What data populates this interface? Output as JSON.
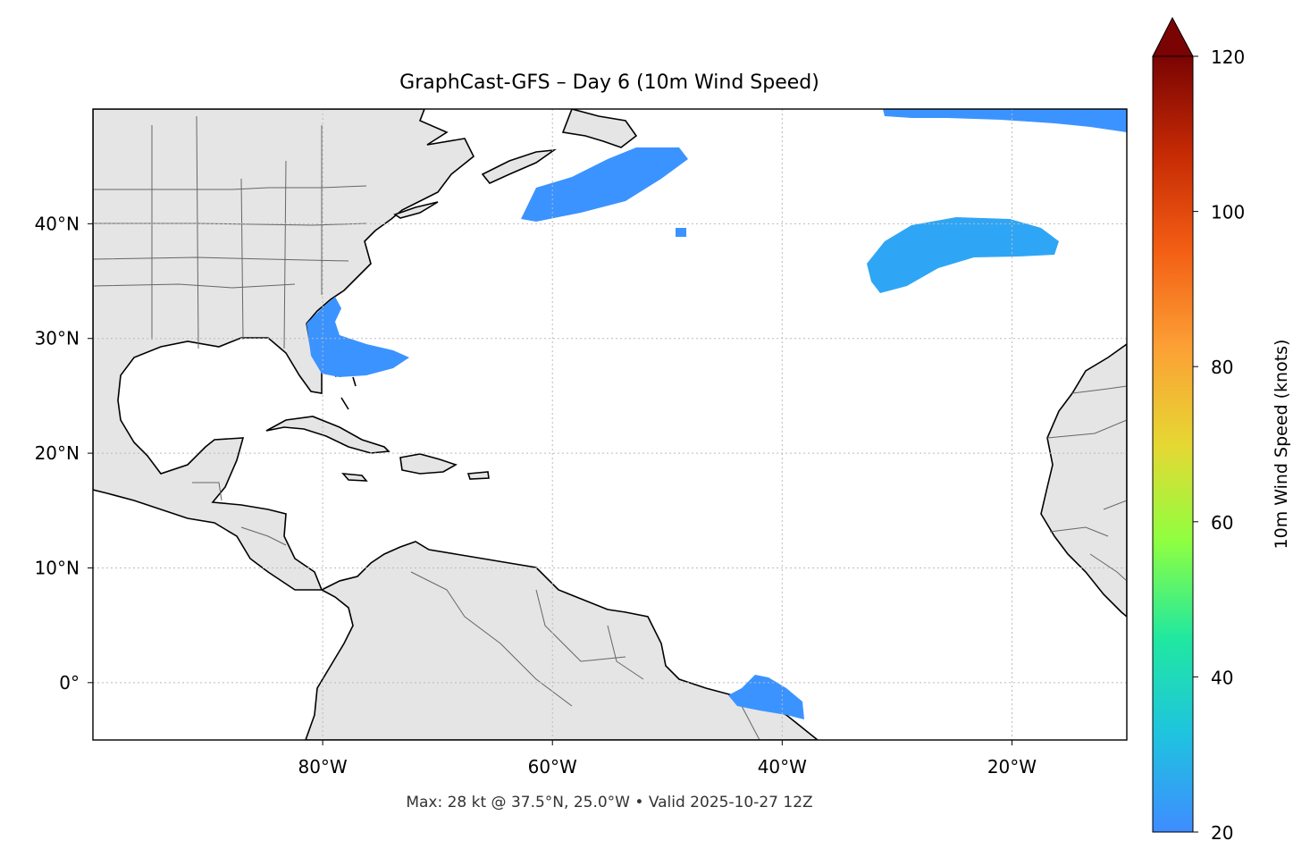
{
  "title": "GraphCast-GFS – Day 6 (10m Wind Speed)",
  "footer": "Max: 28 kt @ 37.5°N, 25.0°W • Valid 2025-10-27 12Z",
  "map": {
    "lon_range": [
      -100,
      -10
    ],
    "lat_range": [
      -5,
      50
    ],
    "xticks": [
      {
        "value": -80,
        "label": "80°W"
      },
      {
        "value": -60,
        "label": "60°W"
      },
      {
        "value": -40,
        "label": "40°W"
      },
      {
        "value": -20,
        "label": "20°W"
      }
    ],
    "yticks": [
      {
        "value": 40,
        "label": "40°N"
      },
      {
        "value": 30,
        "label": "30°N"
      },
      {
        "value": 20,
        "label": "20°N"
      },
      {
        "value": 10,
        "label": "10°N"
      },
      {
        "value": 0,
        "label": "0°"
      }
    ],
    "gridlines": true,
    "land_color": "#e5e5e5",
    "coast_color": "#000000",
    "border_color": "#666666"
  },
  "colorbar": {
    "label": "10m Wind Speed (knots)",
    "range": [
      20,
      120
    ],
    "extend": "max",
    "ticks": [
      {
        "value": 20,
        "label": "20"
      },
      {
        "value": 40,
        "label": "40"
      },
      {
        "value": 60,
        "label": "60"
      },
      {
        "value": 80,
        "label": "80"
      },
      {
        "value": 100,
        "label": "100"
      },
      {
        "value": 120,
        "label": "120"
      }
    ],
    "colors": [
      "#3f8cff",
      "#1fc3e0",
      "#20e8a0",
      "#8fff40",
      "#e6d733",
      "#fca035",
      "#f35e14",
      "#c52a04",
      "#7a0403"
    ]
  },
  "wind_regions": [
    {
      "name": "Newfoundland",
      "color": "#3b93ff"
    },
    {
      "name": "North Atlantic east",
      "color": "#2fa6f5"
    },
    {
      "name": "NE Atlantic top",
      "color": "#3b93ff"
    },
    {
      "name": "Florida coast",
      "color": "#3b93ff"
    },
    {
      "name": "Equatorial Brazil",
      "color": "#3b93ff"
    }
  ]
}
